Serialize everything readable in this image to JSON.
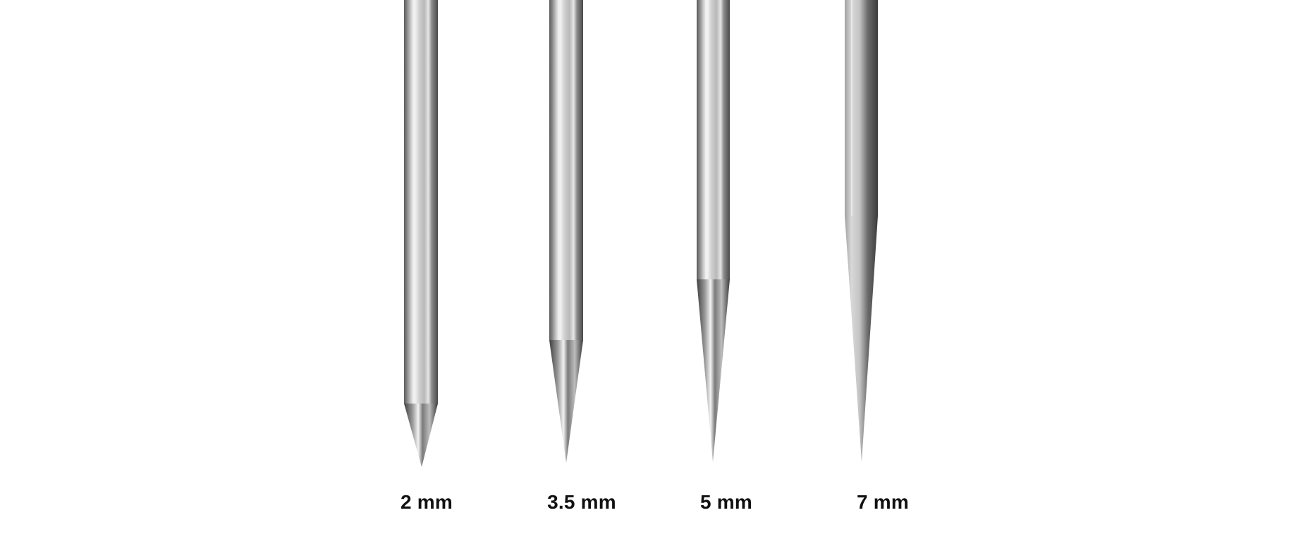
{
  "needles": [
    {
      "label": "2 mm"
    },
    {
      "label": "3.5 mm"
    },
    {
      "label": "5 mm"
    },
    {
      "label": "7 mm"
    }
  ],
  "colors": {
    "background": "#ffffff",
    "label": "#111111",
    "steel_dark": "#4a4a4a",
    "steel_mid": "#9a9a9a",
    "steel_light": "#dedede",
    "steel_highlight": "#f7f7f7"
  }
}
